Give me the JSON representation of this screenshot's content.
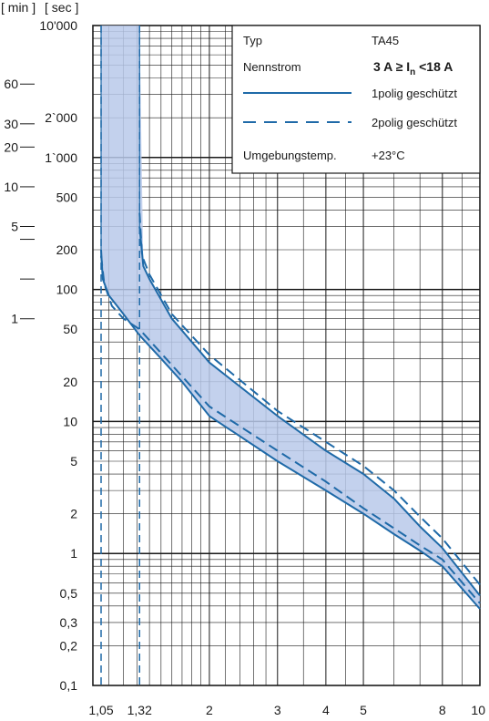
{
  "chart_data": {
    "type": "line",
    "x_scale": "log",
    "y_scale": "log",
    "xlim": [
      1,
      10
    ],
    "ylim": [
      0.1,
      10000
    ],
    "y_axis_unit_sec": "[ sec ]",
    "y_axis_unit_min": "[ min ]",
    "x_ticks": [
      {
        "v": 1.05,
        "label": "1,05"
      },
      {
        "v": 1.32,
        "label": "1,32"
      },
      {
        "v": 2,
        "label": "2"
      },
      {
        "v": 3,
        "label": "3"
      },
      {
        "v": 4,
        "label": "4"
      },
      {
        "v": 5,
        "label": "5"
      },
      {
        "v": 8,
        "label": "8"
      },
      {
        "v": 10,
        "label": "10"
      }
    ],
    "y_ticks_sec": [
      {
        "v": 10000,
        "label": "10'000"
      },
      {
        "v": 2000,
        "label": "2`000"
      },
      {
        "v": 1000,
        "label": "1`000"
      },
      {
        "v": 500,
        "label": "500"
      },
      {
        "v": 200,
        "label": "200"
      },
      {
        "v": 100,
        "label": "100"
      },
      {
        "v": 50,
        "label": "50"
      },
      {
        "v": 20,
        "label": "20"
      },
      {
        "v": 10,
        "label": "10"
      },
      {
        "v": 5,
        "label": "5"
      },
      {
        "v": 2,
        "label": "2"
      },
      {
        "v": 1,
        "label": "1"
      },
      {
        "v": 0.5,
        "label": "0,5"
      },
      {
        "v": 0.3,
        "label": "0,3"
      },
      {
        "v": 0.2,
        "label": "0,2"
      },
      {
        "v": 0.1,
        "label": "0,1"
      }
    ],
    "y_ticks_min": [
      {
        "v": 3600,
        "label": "60"
      },
      {
        "v": 1800,
        "label": "30"
      },
      {
        "v": 1200,
        "label": "20"
      },
      {
        "v": 600,
        "label": "10"
      },
      {
        "v": 300,
        "label": "5"
      },
      {
        "v": 240,
        "label": ""
      },
      {
        "v": 120,
        "label": ""
      },
      {
        "v": 60,
        "label": "1"
      }
    ],
    "legend": {
      "rows": [
        {
          "key": "Typ",
          "value": "TA45"
        },
        {
          "key": "Nennstrom",
          "value_pre": "3 A ≥ I",
          "value_sub": "n",
          "value_post": " <18 A"
        },
        {
          "style": "solid",
          "value": "1polig geschützt"
        },
        {
          "style": "dashed",
          "value": "2polig geschützt"
        },
        {
          "key": "Umgebungstemp.",
          "value": "+23°C"
        }
      ]
    },
    "series": [
      {
        "style": "solid",
        "role": "lower",
        "points": [
          [
            1.05,
            200
          ],
          [
            1.06,
            120
          ],
          [
            1.1,
            90
          ],
          [
            1.2,
            65
          ],
          [
            1.32,
            45
          ],
          [
            1.5,
            30
          ],
          [
            1.7,
            20
          ],
          [
            2,
            11
          ],
          [
            3,
            5
          ],
          [
            4,
            3
          ],
          [
            5,
            2
          ],
          [
            6,
            1.4
          ],
          [
            7,
            1.05
          ],
          [
            8,
            0.8
          ],
          [
            10,
            0.38
          ]
        ]
      },
      {
        "style": "solid",
        "role": "upper",
        "points": [
          [
            1.32,
            300
          ],
          [
            1.35,
            150
          ],
          [
            1.4,
            120
          ],
          [
            1.6,
            60
          ],
          [
            2,
            28
          ],
          [
            3,
            11
          ],
          [
            4,
            6
          ],
          [
            5,
            4
          ],
          [
            6,
            2.6
          ],
          [
            7,
            1.6
          ],
          [
            8,
            1.1
          ],
          [
            10,
            0.48
          ]
        ]
      },
      {
        "style": "dashed",
        "role": "lower",
        "points": [
          [
            1.05,
            180
          ],
          [
            1.07,
            110
          ],
          [
            1.12,
            75
          ],
          [
            1.2,
            60
          ],
          [
            1.32,
            50
          ],
          [
            1.5,
            33
          ],
          [
            1.7,
            22
          ],
          [
            2,
            13
          ],
          [
            3,
            6
          ],
          [
            4,
            3.5
          ],
          [
            5,
            2.2
          ],
          [
            6,
            1.55
          ],
          [
            7,
            1.15
          ],
          [
            8,
            0.9
          ],
          [
            10,
            0.42
          ]
        ]
      },
      {
        "style": "dashed",
        "role": "upper",
        "points": [
          [
            1.32,
            380
          ],
          [
            1.34,
            180
          ],
          [
            1.4,
            130
          ],
          [
            1.6,
            65
          ],
          [
            2,
            32
          ],
          [
            3,
            12
          ],
          [
            4,
            7
          ],
          [
            5,
            4.6
          ],
          [
            6,
            3
          ],
          [
            7,
            1.9
          ],
          [
            8,
            1.3
          ],
          [
            10,
            0.58
          ]
        ]
      }
    ],
    "vlines": [
      1.05,
      1.32
    ],
    "colors": {
      "line": "#1f6aa8",
      "band": "#b9c9ea",
      "grid": "#1a1a1a"
    }
  }
}
